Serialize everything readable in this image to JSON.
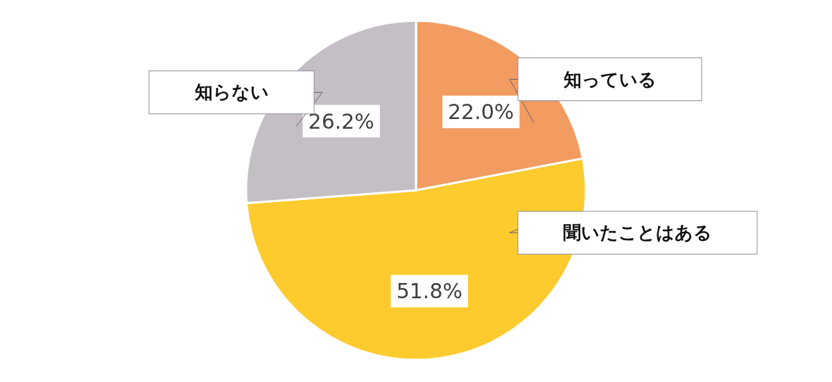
{
  "chart_data": {
    "type": "pie",
    "categories": [
      "知っている",
      "聞いたことはある",
      "知らない"
    ],
    "values": [
      22.0,
      51.8,
      26.2
    ],
    "value_labels": [
      "22.0%",
      "51.8%",
      "26.2%"
    ],
    "colors": [
      "#f29c62",
      "#fdcb2e",
      "#c3bfc4"
    ]
  }
}
